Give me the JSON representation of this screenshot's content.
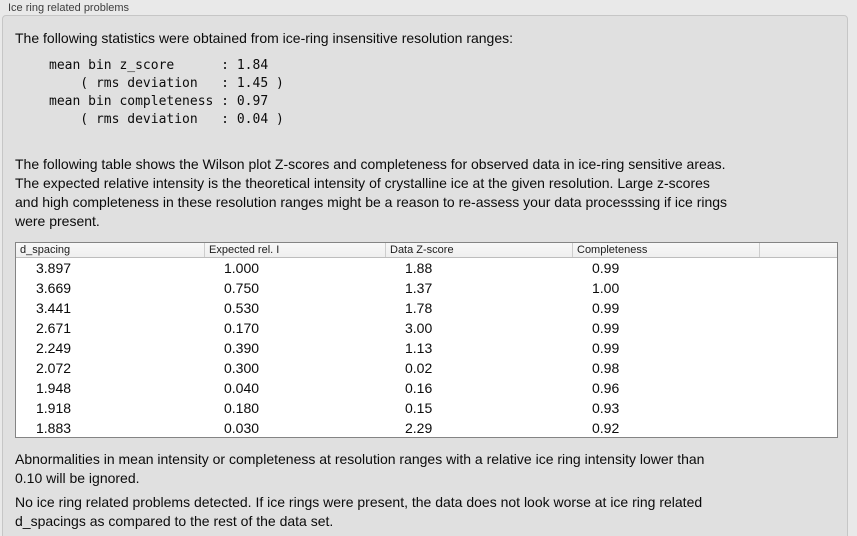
{
  "panel": {
    "title": "Ice ring related problems"
  },
  "intro": {
    "text": "The following statistics were obtained from ice-ring insensitive resolution ranges:"
  },
  "stats_block": {
    "lines": [
      "mean bin z_score      : 1.84",
      "    ( rms deviation   : 1.45 )",
      "mean bin completeness : 0.97",
      "    ( rms deviation   : 0.04 )"
    ]
  },
  "table_description": {
    "lines": [
      "The following table shows the Wilson plot Z-scores and completeness for observed data in ice-ring sensitive areas.",
      "The expected relative intensity is the theoretical intensity of crystalline ice at the given resolution. Large z-scores",
      "and high completeness in these resolution ranges might be a reason to re-assess your data processsing if ice rings",
      "were present."
    ]
  },
  "table": {
    "columns": [
      "d_spacing",
      "Expected rel. I",
      "Data Z-score",
      "Completeness"
    ],
    "rows": [
      [
        "3.897",
        "1.000",
        "1.88",
        "0.99"
      ],
      [
        "3.669",
        "0.750",
        "1.37",
        "1.00"
      ],
      [
        "3.441",
        "0.530",
        "1.78",
        "0.99"
      ],
      [
        "2.671",
        "0.170",
        "3.00",
        "0.99"
      ],
      [
        "2.249",
        "0.390",
        "1.13",
        "0.99"
      ],
      [
        "2.072",
        "0.300",
        "0.02",
        "0.98"
      ],
      [
        "1.948",
        "0.040",
        "0.16",
        "0.96"
      ],
      [
        "1.918",
        "0.180",
        "0.15",
        "0.93"
      ],
      [
        "1.883",
        "0.030",
        "2.29",
        "0.92"
      ]
    ]
  },
  "ignore_note": {
    "lines": [
      "Abnormalities in mean intensity or completeness at resolution ranges with a relative ice ring intensity lower than",
      "0.10 will be ignored."
    ]
  },
  "conclusion": {
    "lines": [
      "No ice ring related problems detected. If ice rings were present, the data does not look worse at ice ring related",
      "d_spacings as compared to the rest of the data set."
    ]
  },
  "colors": {
    "outer_bg": "#e9e9e9",
    "panel_bg": "#e0e0e0",
    "panel_border": "#c6c6c6",
    "table_bg": "#ffffff",
    "table_border": "#848484",
    "header_divider": "#cdcdcd",
    "text": "#0b0b0b",
    "title_text": "#3d3d3d"
  }
}
